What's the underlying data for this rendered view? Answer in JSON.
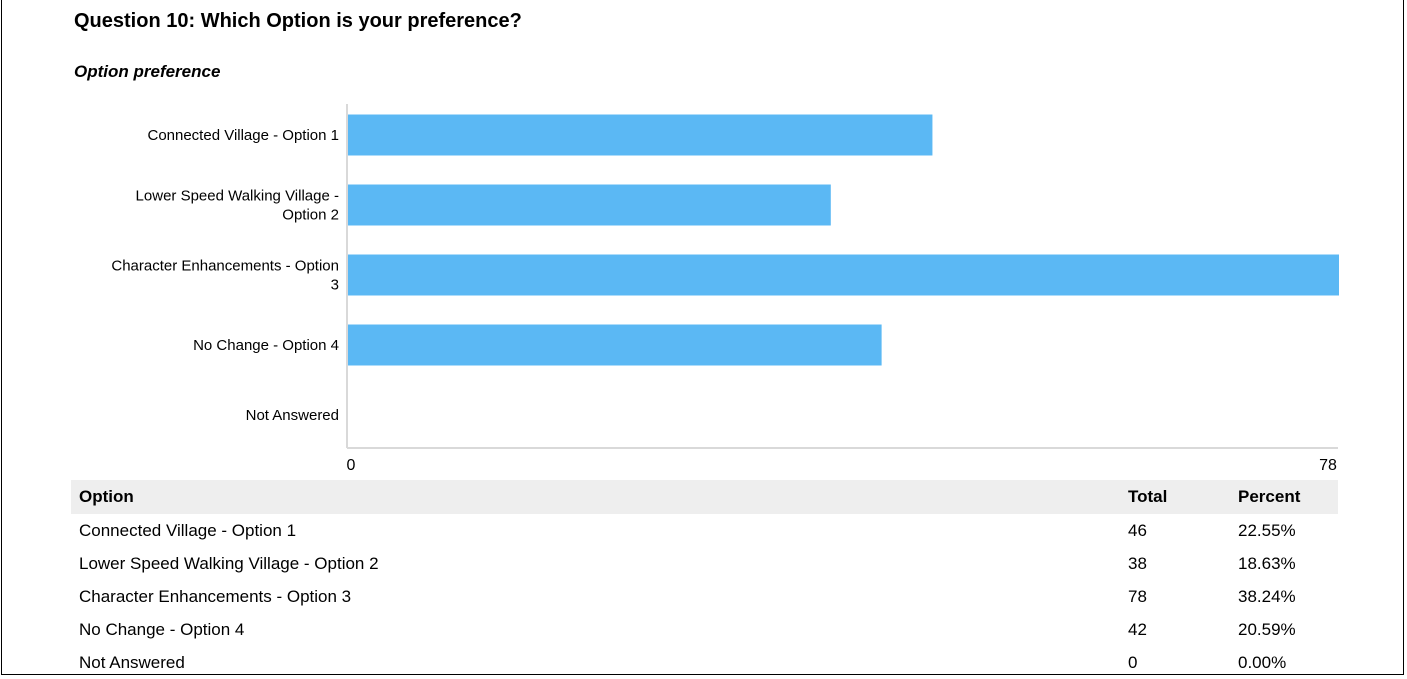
{
  "question": {
    "title": "Question 10: Which Option is your preference?"
  },
  "chart_data": {
    "type": "bar",
    "orientation": "horizontal",
    "title": "Option preference",
    "categories": [
      "Connected Village - Option 1",
      "Lower Speed Walking Village - Option 2",
      "Character Enhancements - Option 3",
      "No Change - Option 4",
      "Not Answered"
    ],
    "category_label_lines": [
      [
        "Connected Village - Option 1"
      ],
      [
        "Lower Speed Walking Village -",
        "Option 2"
      ],
      [
        "Character Enhancements - Option",
        "3"
      ],
      [
        "No Change - Option 4"
      ],
      [
        "Not Answered"
      ]
    ],
    "values": [
      46,
      38,
      78,
      42,
      0
    ],
    "xlim": [
      0,
      78
    ],
    "x_tick_labels": [
      "0",
      "78"
    ],
    "bar_color": "#5bb8f4",
    "xlabel": "",
    "ylabel": "",
    "grid": false,
    "legend": "none"
  },
  "table": {
    "headers": {
      "option": "Option",
      "total": "Total",
      "percent": "Percent"
    },
    "rows": [
      {
        "option": "Connected Village - Option 1",
        "total": "46",
        "percent": "22.55%"
      },
      {
        "option": "Lower Speed Walking Village - Option 2",
        "total": "38",
        "percent": "18.63%"
      },
      {
        "option": "Character Enhancements - Option 3",
        "total": "78",
        "percent": "38.24%"
      },
      {
        "option": "No Change - Option 4",
        "total": "42",
        "percent": "20.59%"
      },
      {
        "option": "Not Answered",
        "total": "0",
        "percent": "0.00%"
      }
    ]
  }
}
